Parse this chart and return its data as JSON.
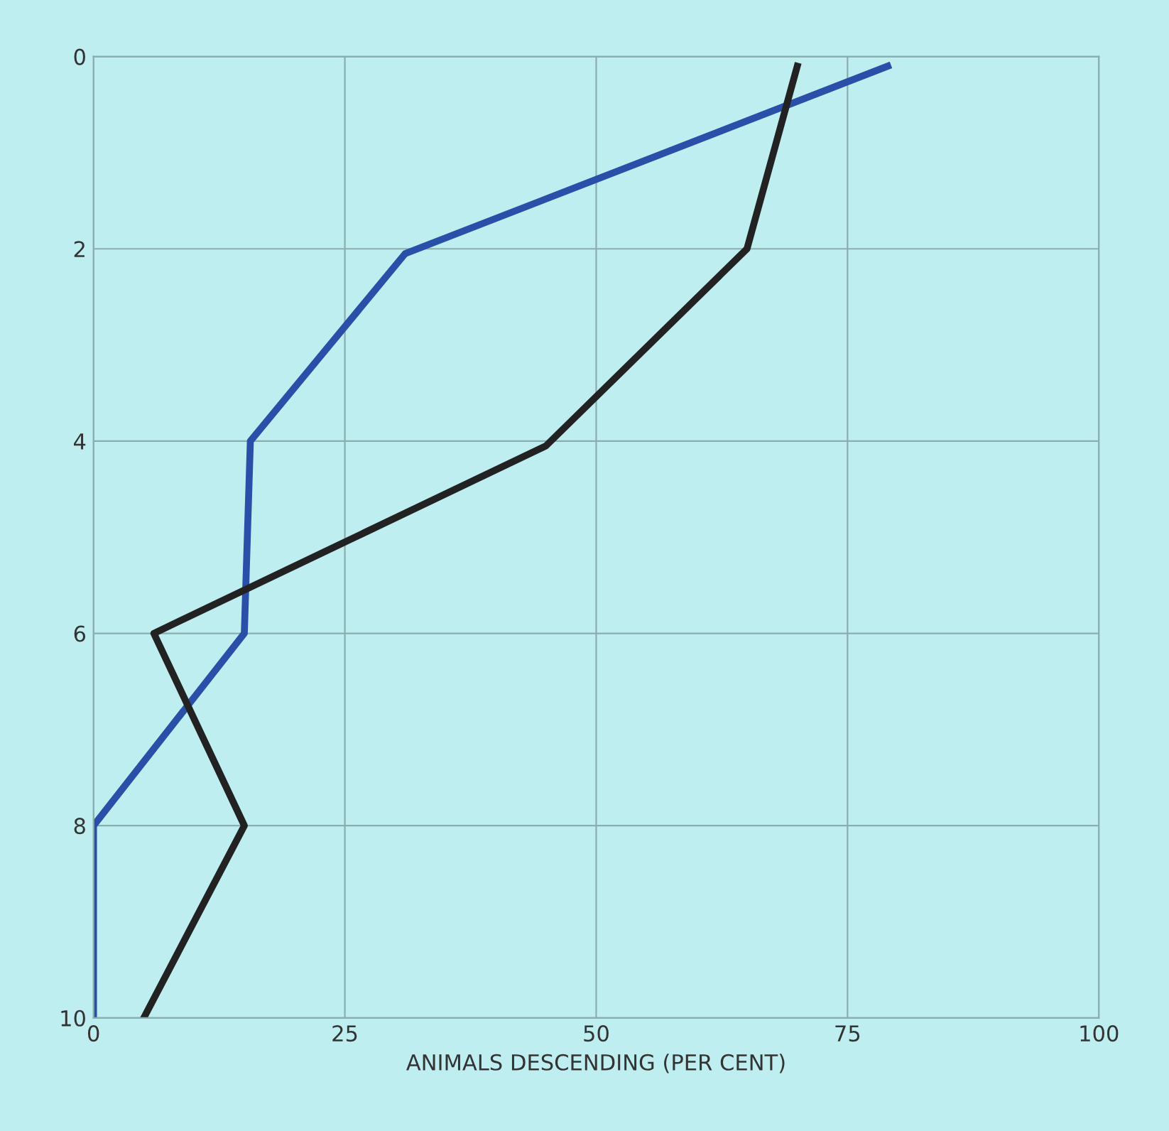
{
  "chart_data": {
    "type": "line",
    "xlabel": "ANIMALS DESCENDING (PER CENT)",
    "series": [
      {
        "color": "#2a4fa8",
        "x": [
          79,
          31,
          15.6,
          15,
          0,
          0
        ],
        "values": [
          0.1,
          2.05,
          4,
          6,
          8,
          10
        ]
      },
      {
        "color": "#222222",
        "x": [
          70,
          65,
          45,
          6,
          15,
          5
        ],
        "values": [
          0.1,
          2,
          4.05,
          6,
          8,
          10
        ]
      }
    ],
    "xlim": [
      0,
      100
    ],
    "xticks": [
      0,
      25,
      50,
      75,
      100
    ],
    "ylim": [
      10,
      0
    ],
    "yticks": [
      0,
      2,
      4,
      6,
      8,
      10
    ],
    "grid": true,
    "marker": "none",
    "line_style": "solid"
  }
}
